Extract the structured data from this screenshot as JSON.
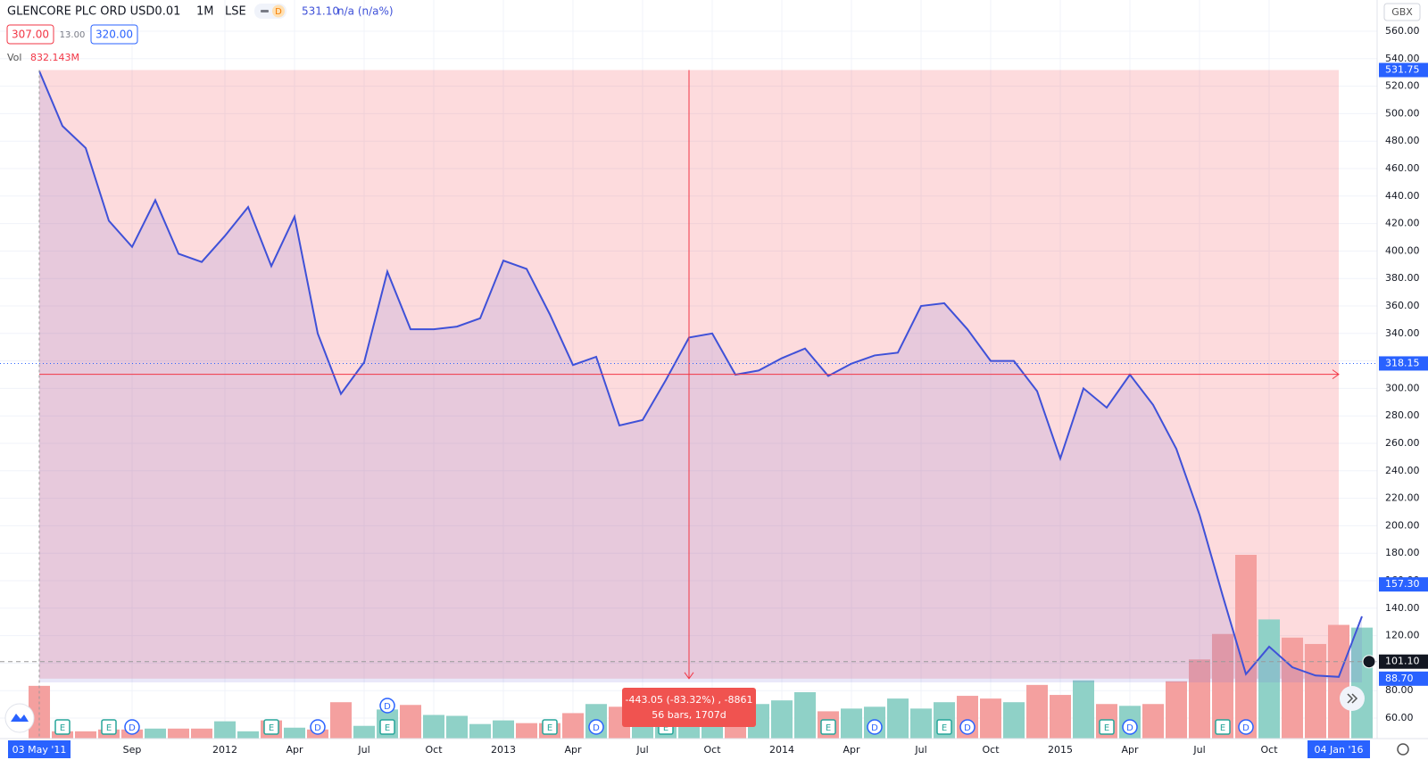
{
  "header": {
    "symbol": "GLENCORE PLC ORD USD0.01",
    "interval": "1M",
    "exchange": "LSE",
    "badge": "D",
    "last": "531.10",
    "change": "n/a (n/a%)",
    "bid": "307.00",
    "spread": "13.00",
    "ask": "320.00",
    "vol_label": "Vol",
    "vol_value": "832.143M",
    "currency": "GBX"
  },
  "chart_data": {
    "type": "line",
    "color": "#3f51d8",
    "categories": [
      "03 May '11",
      null,
      null,
      null,
      "Sep",
      null,
      null,
      null,
      "2012",
      null,
      null,
      "Apr",
      null,
      null,
      "Jul",
      null,
      null,
      "Oct",
      null,
      null,
      "2013",
      null,
      null,
      "Apr",
      null,
      null,
      "Jul",
      null,
      null,
      "Oct",
      null,
      null,
      "2014",
      null,
      null,
      "Apr",
      null,
      null,
      "Jul",
      null,
      null,
      "Oct",
      null,
      null,
      "2015",
      null,
      null,
      "Apr",
      null,
      null,
      "Jul",
      null,
      null,
      "Oct",
      null,
      null,
      "04 Jan '16",
      null
    ],
    "values": [
      531,
      491,
      475,
      422,
      403,
      437,
      398,
      392,
      411,
      432,
      389,
      425,
      340,
      296,
      319,
      385,
      343,
      343,
      345,
      351,
      393,
      387,
      354,
      317,
      323,
      273,
      277,
      306,
      337,
      340,
      310,
      313,
      322,
      329,
      309,
      318,
      324,
      326,
      360,
      362,
      343,
      320,
      320,
      298,
      249,
      300,
      286,
      310,
      288,
      256,
      208,
      149,
      92,
      112,
      97,
      91,
      90,
      134
    ],
    "volume": [
      1392,
      192,
      192,
      240,
      240,
      264,
      264,
      264,
      456,
      192,
      480,
      288,
      240,
      960,
      336,
      768,
      888,
      624,
      600,
      384,
      480,
      408,
      408,
      672,
      912,
      840,
      480,
      720,
      832.143,
      960,
      672,
      912,
      1008,
      1224,
      720,
      792,
      840,
      1056,
      792,
      960,
      1128,
      1056,
      960,
      1416,
      1152,
      1536,
      912,
      864,
      912,
      1512,
      2088,
      2760,
      4848,
      3144,
      2664,
      2496,
      3000,
      2928
    ],
    "up_color": "#8fd1c7",
    "down_color": "#f4a09f",
    "events": [
      null,
      [
        "E"
      ],
      null,
      [
        "E"
      ],
      [
        "D"
      ],
      null,
      null,
      null,
      null,
      null,
      [
        "E"
      ],
      null,
      [
        "D"
      ],
      null,
      null,
      [
        "E",
        "D"
      ],
      null,
      null,
      null,
      null,
      null,
      null,
      [
        "E"
      ],
      null,
      [
        "D"
      ],
      null,
      null,
      [
        "E"
      ],
      null,
      null,
      null,
      null,
      null,
      null,
      [
        "E"
      ],
      null,
      [
        "D"
      ],
      null,
      null,
      [
        "E"
      ],
      [
        "D"
      ],
      null,
      null,
      null,
      null,
      null,
      [
        "E"
      ],
      [
        "D"
      ],
      null,
      null,
      null,
      [
        "E"
      ],
      [
        "D"
      ],
      null,
      null,
      null,
      null,
      null
    ],
    "ylim": [
      60,
      560
    ],
    "yticks": [
      {
        "value": 60,
        "label": "60.00"
      },
      {
        "value": 80,
        "label": "80.00"
      },
      {
        "value": 100,
        "label": "100.00"
      },
      {
        "value": 120,
        "label": "120.00"
      },
      {
        "value": 140,
        "label": "140.00"
      },
      {
        "value": 160,
        "label": "160.00"
      },
      {
        "value": 180,
        "label": "180.00"
      },
      {
        "value": 200,
        "label": "200.00"
      },
      {
        "value": 220,
        "label": "220.00"
      },
      {
        "value": 240,
        "label": "240.00"
      },
      {
        "value": 260,
        "label": "260.00"
      },
      {
        "value": 280,
        "label": "280.00"
      },
      {
        "value": 300,
        "label": "300.00"
      },
      {
        "value": 320,
        "label": "320.00"
      },
      {
        "value": 340,
        "label": "340.00"
      },
      {
        "value": 360,
        "label": "360.00"
      },
      {
        "value": 380,
        "label": "380.00"
      },
      {
        "value": 400,
        "label": "400.00"
      },
      {
        "value": 420,
        "label": "420.00"
      },
      {
        "value": 440,
        "label": "440.00"
      },
      {
        "value": 460,
        "label": "460.00"
      },
      {
        "value": 480,
        "label": "480.00"
      },
      {
        "value": 500,
        "label": "500.00"
      },
      {
        "value": 520,
        "label": "520.00"
      },
      {
        "value": 540,
        "label": "540.00"
      },
      {
        "value": 560,
        "label": "560.00"
      }
    ],
    "price_tags": {
      "top": {
        "value": 531.75,
        "label": "531.75"
      },
      "bottom": {
        "value": 88.7,
        "label": "88.70"
      },
      "current": {
        "value": 318.15,
        "label": "318.15"
      },
      "mark": {
        "value": 157.3,
        "label": "157.30"
      },
      "cursor": {
        "value": 101.1,
        "label": "101.10"
      }
    },
    "measure": {
      "start": 0,
      "end": 56,
      "line1": "-443.05 (-83.32%) , -8861",
      "line2": "56 bars, 1707d"
    }
  }
}
